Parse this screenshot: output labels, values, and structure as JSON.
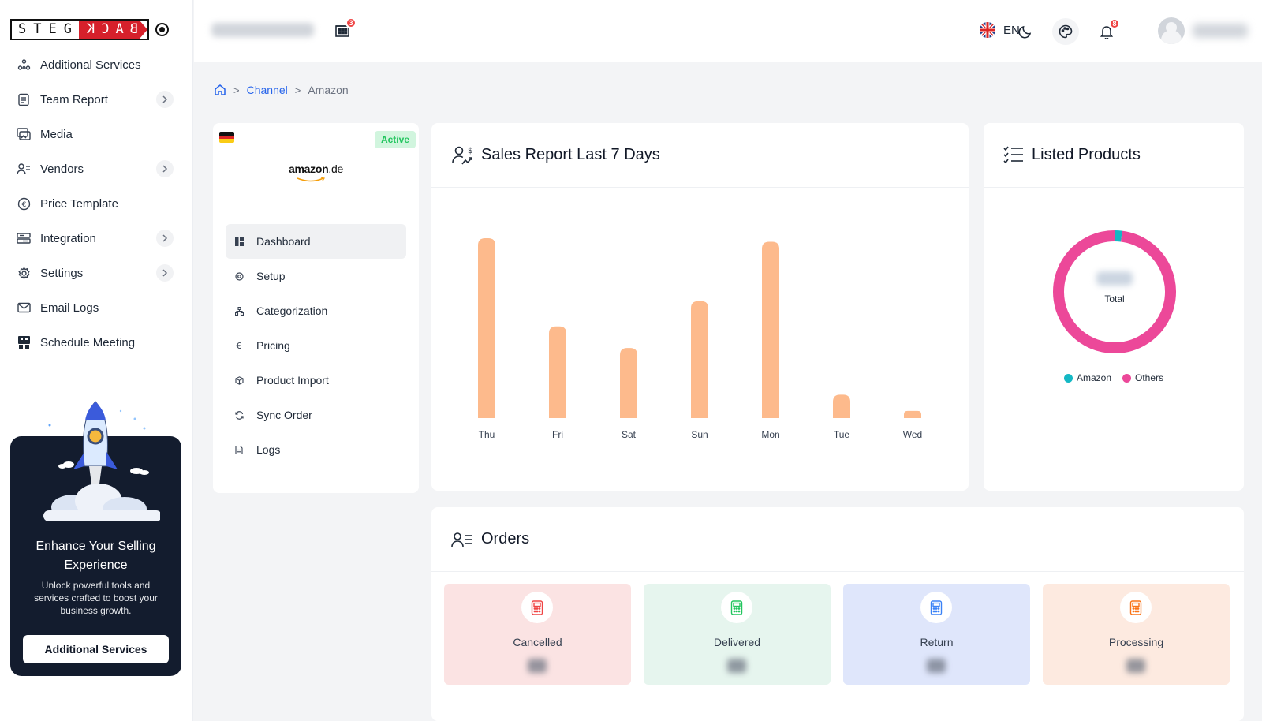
{
  "brand": {
    "left": "STEG",
    "right": "BACK"
  },
  "sidebar": {
    "items": [
      {
        "label": "Additional Services",
        "icon": "services-icon",
        "has_chevron": false
      },
      {
        "label": "Team Report",
        "icon": "report-icon",
        "has_chevron": true
      },
      {
        "label": "Media",
        "icon": "media-icon",
        "has_chevron": false
      },
      {
        "label": "Vendors",
        "icon": "vendors-icon",
        "has_chevron": true
      },
      {
        "label": "Price Template",
        "icon": "euro-circle-icon",
        "has_chevron": false
      },
      {
        "label": "Integration",
        "icon": "integration-icon",
        "has_chevron": true
      },
      {
        "label": "Settings",
        "icon": "gear-icon",
        "has_chevron": true
      },
      {
        "label": "Email Logs",
        "icon": "mail-icon",
        "has_chevron": false
      },
      {
        "label": "Schedule Meeting",
        "icon": "meeting-icon",
        "has_chevron": false
      }
    ],
    "promo": {
      "title": "Enhance Your Selling Experience",
      "text": "Unlock powerful tools and services crafted to boost your business growth.",
      "button": "Additional Services"
    }
  },
  "topbar": {
    "store_badge": "3",
    "language": "EN",
    "notification_badge": "8"
  },
  "breadcrumb": {
    "link": "Channel",
    "current": "Amazon"
  },
  "channel": {
    "status": "Active",
    "logo_main": "amazon",
    "logo_tld": ".de",
    "menu": [
      {
        "label": "Dashboard",
        "icon": "dashboard-icon",
        "active": true
      },
      {
        "label": "Setup",
        "icon": "setup-icon",
        "active": false
      },
      {
        "label": "Categorization",
        "icon": "categorization-icon",
        "active": false
      },
      {
        "label": "Pricing",
        "icon": "euro-icon",
        "active": false
      },
      {
        "label": "Product Import",
        "icon": "import-icon",
        "active": false
      },
      {
        "label": "Sync Order",
        "icon": "sync-icon",
        "active": false
      },
      {
        "label": "Logs",
        "icon": "logs-icon",
        "active": false
      }
    ]
  },
  "sales": {
    "title": "Sales Report Last 7 Days"
  },
  "listed": {
    "title": "Listed Products",
    "total_label": "Total"
  },
  "orders": {
    "title": "Orders",
    "tiles": [
      {
        "label": "Cancelled",
        "bg": "#fbe3e3",
        "icon_color": "#ef4444"
      },
      {
        "label": "Delivered",
        "bg": "#e6f5ee",
        "icon_color": "#22c55e"
      },
      {
        "label": "Return",
        "bg": "#dfe6fb",
        "icon_color": "#3b82f6"
      },
      {
        "label": "Processing",
        "bg": "#fdeae0",
        "icon_color": "#f97316"
      }
    ]
  },
  "chart_data": [
    {
      "type": "bar",
      "categories": [
        "Thu",
        "Fri",
        "Sat",
        "Sun",
        "Mon",
        "Tue",
        "Wed"
      ],
      "values": [
        100,
        51,
        39,
        65,
        98,
        13,
        4
      ],
      "color": "#fdba8c",
      "title": "Sales Report Last 7 Days",
      "xlabel": "",
      "ylabel": "",
      "ylim": [
        0,
        100
      ],
      "grid": false
    },
    {
      "type": "pie",
      "categories": [
        "Amazon",
        "Others"
      ],
      "values": [
        2,
        98
      ],
      "colors": [
        "#14b8c4",
        "#ec4899"
      ],
      "title": "Listed Products",
      "legend": "bottom"
    }
  ]
}
